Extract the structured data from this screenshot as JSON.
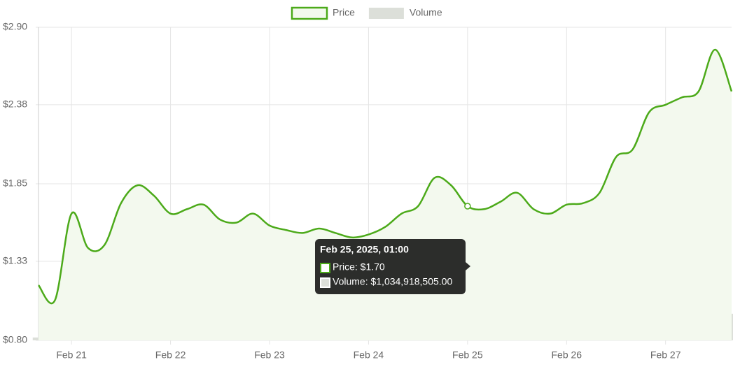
{
  "chart_data": {
    "type": "line",
    "categories": [
      null,
      null,
      "Feb 21",
      null,
      null,
      null,
      null,
      null,
      "Feb 22",
      null,
      null,
      null,
      null,
      null,
      "Feb 23",
      null,
      null,
      null,
      null,
      null,
      "Feb 24",
      null,
      null,
      null,
      null,
      null,
      "Feb 25",
      null,
      null,
      null,
      null,
      null,
      "Feb 26",
      null,
      null,
      null,
      null,
      null,
      "Feb 27",
      null,
      null,
      null,
      null
    ],
    "series": [
      {
        "name": "Price",
        "color": "#4caa1a",
        "fill": "#f3f9ee",
        "values": [
          1.17,
          1.07,
          1.65,
          1.42,
          1.44,
          1.72,
          1.84,
          1.77,
          1.65,
          1.68,
          1.71,
          1.61,
          1.59,
          1.65,
          1.57,
          1.54,
          1.52,
          1.55,
          1.52,
          1.49,
          1.51,
          1.56,
          1.65,
          1.7,
          1.89,
          1.84,
          1.7,
          1.68,
          1.73,
          1.79,
          1.68,
          1.65,
          1.71,
          1.72,
          1.79,
          2.03,
          2.08,
          2.33,
          2.38,
          2.43,
          2.47,
          2.75,
          2.47
        ]
      },
      {
        "name": "Volume",
        "color": "#dcdfd9",
        "type": "bar",
        "axis": "y2",
        "values": [
          200000000,
          400000000,
          1500000000,
          1570000000,
          1870000000,
          2700000000,
          2950000000,
          2700000000,
          1960000000,
          1870000000,
          1720000000,
          1470000000,
          1230000000,
          880000000,
          740000000,
          590000000,
          490000000,
          490000000,
          490000000,
          490000000,
          490000000,
          490000000,
          590000000,
          690000000,
          980000000,
          1080000000,
          1030000000,
          1030000000,
          1080000000,
          1130000000,
          880000000,
          740000000,
          690000000,
          640000000,
          640000000,
          690000000,
          790000000,
          1330000000,
          1470000000,
          1620000000,
          1720000000,
          2060000000,
          1870000000
        ]
      }
    ],
    "ylim": [
      0.8,
      2.9
    ],
    "yticks": [
      {
        "value": 0.8,
        "label": "$0.80"
      },
      {
        "value": 1.33,
        "label": "$1.33"
      },
      {
        "value": 1.85,
        "label": "$1.85"
      },
      {
        "value": 2.38,
        "label": "$2.38"
      },
      {
        "value": 2.9,
        "label": "$2.90"
      }
    ],
    "y2lim": [
      0,
      22000000000
    ],
    "grid": true,
    "legend": "top",
    "tooltip": {
      "title": "Feb 25, 2025, 01:00",
      "lines": [
        "Price: $1.70",
        "Volume: $1,034,918,505.00"
      ]
    }
  }
}
